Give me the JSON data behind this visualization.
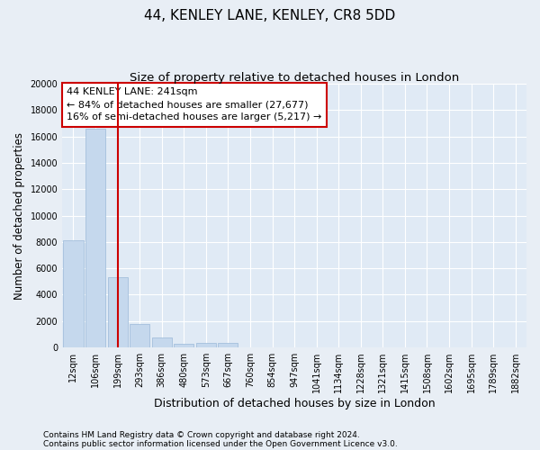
{
  "title": "44, KENLEY LANE, KENLEY, CR8 5DD",
  "subtitle": "Size of property relative to detached houses in London",
  "xlabel": "Distribution of detached houses by size in London",
  "ylabel": "Number of detached properties",
  "categories": [
    "12sqm",
    "106sqm",
    "199sqm",
    "293sqm",
    "386sqm",
    "480sqm",
    "573sqm",
    "667sqm",
    "760sqm",
    "854sqm",
    "947sqm",
    "1041sqm",
    "1134sqm",
    "1228sqm",
    "1321sqm",
    "1415sqm",
    "1508sqm",
    "1602sqm",
    "1695sqm",
    "1789sqm",
    "1882sqm"
  ],
  "bar_values": [
    8100,
    16600,
    5300,
    1800,
    750,
    300,
    350,
    350,
    0,
    0,
    0,
    0,
    0,
    0,
    0,
    0,
    0,
    0,
    0,
    0,
    0
  ],
  "bar_color": "#c5d8ed",
  "bar_edge_color": "#9ab9d8",
  "vline_x_index": 2,
  "vline_color": "#cc0000",
  "annotation_text": "44 KENLEY LANE: 241sqm\n← 84% of detached houses are smaller (27,677)\n16% of semi-detached houses are larger (5,217) →",
  "annotation_box_edgecolor": "#cc0000",
  "ylim": [
    0,
    20000
  ],
  "yticks": [
    0,
    2000,
    4000,
    6000,
    8000,
    10000,
    12000,
    14000,
    16000,
    18000,
    20000
  ],
  "footnote_line1": "Contains HM Land Registry data © Crown copyright and database right 2024.",
  "footnote_line2": "Contains public sector information licensed under the Open Government Licence v3.0.",
  "bg_color": "#e8eef5",
  "plot_bg_color": "#e0eaf5",
  "title_fontsize": 11,
  "subtitle_fontsize": 9.5,
  "tick_fontsize": 7,
  "ylabel_fontsize": 8.5,
  "xlabel_fontsize": 9,
  "annotation_fontsize": 8,
  "footnote_fontsize": 6.5
}
